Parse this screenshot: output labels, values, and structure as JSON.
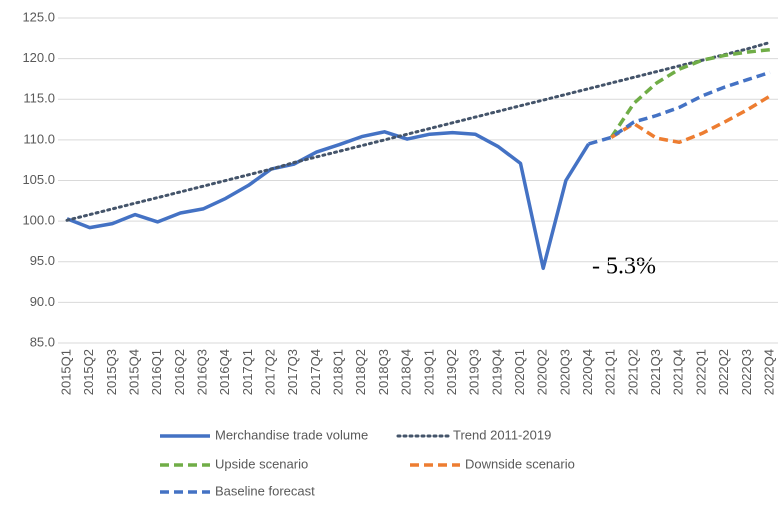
{
  "chart_data": {
    "type": "line",
    "annotations": [
      "- 5.3%"
    ],
    "categories": [
      "2015Q1",
      "2015Q2",
      "2015Q3",
      "2015Q4",
      "2016Q1",
      "2016Q2",
      "2016Q3",
      "2016Q4",
      "2017Q1",
      "2017Q2",
      "2017Q3",
      "2017Q4",
      "2018Q1",
      "2018Q2",
      "2018Q3",
      "2018Q4",
      "2019Q1",
      "2019Q2",
      "2019Q3",
      "2019Q4",
      "2020Q1",
      "2020Q2",
      "2020Q3",
      "2020Q4",
      "2021Q1",
      "2021Q2",
      "2021Q3",
      "2021Q4",
      "2022Q1",
      "2022Q2",
      "2022Q3",
      "2022Q4"
    ],
    "series": [
      {
        "name": "Merchandise trade volume",
        "color": "#4472c4",
        "dash": "solid",
        "values": [
          100.3,
          99.2,
          99.7,
          100.8,
          99.9,
          101.0,
          101.5,
          102.8,
          104.4,
          106.4,
          107.0,
          108.5,
          109.4,
          110.4,
          111.0,
          110.1,
          110.7,
          110.9,
          110.7,
          109.2,
          107.1,
          94.2,
          105.0,
          109.5,
          null,
          null,
          null,
          null,
          null,
          null,
          null,
          null
        ]
      },
      {
        "name": "Trend 2011-2019",
        "color": "#44546a",
        "dash": "dotted",
        "values": [
          100.1,
          100.8,
          101.5,
          102.2,
          102.9,
          103.6,
          104.3,
          105.0,
          105.7,
          106.4,
          107.2,
          107.9,
          108.6,
          109.3,
          110.0,
          110.7,
          111.4,
          112.1,
          112.8,
          113.5,
          114.2,
          114.9,
          115.6,
          116.3,
          117.0,
          117.7,
          118.4,
          119.1,
          119.8,
          120.5,
          121.2,
          122.0
        ]
      },
      {
        "name": "Upside scenario",
        "color": "#70ad47",
        "dash": "dashed",
        "values": [
          null,
          null,
          null,
          null,
          null,
          null,
          null,
          null,
          null,
          null,
          null,
          null,
          null,
          null,
          null,
          null,
          null,
          null,
          null,
          null,
          null,
          null,
          null,
          null,
          110.3,
          114.5,
          117.0,
          118.7,
          119.8,
          120.4,
          120.8,
          121.1
        ]
      },
      {
        "name": "Downside scenario",
        "color": "#ed7d31",
        "dash": "dashed",
        "values": [
          null,
          null,
          null,
          null,
          null,
          null,
          null,
          null,
          null,
          null,
          null,
          null,
          null,
          null,
          null,
          null,
          null,
          null,
          null,
          null,
          null,
          null,
          null,
          null,
          110.3,
          112.0,
          110.2,
          109.7,
          110.8,
          112.2,
          113.7,
          115.4
        ]
      },
      {
        "name": "Baseline forecast",
        "color": "#4472c4",
        "dash": "dashed",
        "values": [
          null,
          null,
          null,
          null,
          null,
          null,
          null,
          null,
          null,
          null,
          null,
          null,
          null,
          null,
          null,
          null,
          null,
          null,
          null,
          null,
          null,
          null,
          null,
          109.5,
          110.3,
          112.2,
          113.0,
          114.0,
          115.4,
          116.5,
          117.4,
          118.3
        ]
      }
    ],
    "ylim": [
      85,
      125
    ],
    "yticks": [
      {
        "value": 85,
        "label": "85.0"
      },
      {
        "value": 90,
        "label": "90.0"
      },
      {
        "value": 95,
        "label": "95.0"
      },
      {
        "value": 100,
        "label": "100.0"
      },
      {
        "value": 105,
        "label": "105.0"
      },
      {
        "value": 110,
        "label": "110.0"
      },
      {
        "value": 115,
        "label": "115.0"
      },
      {
        "value": 120,
        "label": "120.0"
      },
      {
        "value": 125,
        "label": "125.0"
      }
    ],
    "grid": true,
    "legend": "bottom"
  }
}
